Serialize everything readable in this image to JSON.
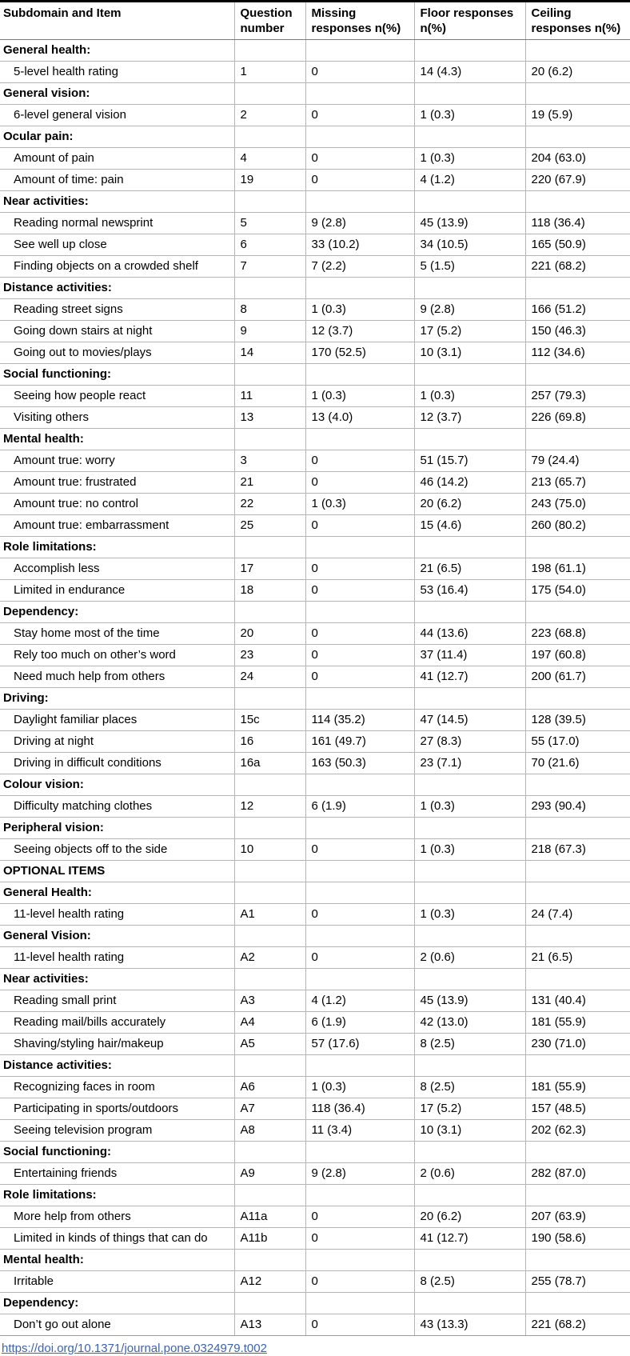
{
  "table": {
    "columns": [
      "Subdomain and Item",
      "Question number",
      "Missing responses n(%)",
      "Floor responses n(%)",
      "Ceiling responses n(%)"
    ],
    "rows": [
      {
        "type": "section",
        "label": "General health:",
        "q": "",
        "missing": "",
        "floor": "",
        "ceiling": ""
      },
      {
        "type": "item",
        "label": "5-level health rating",
        "q": "1",
        "missing": "0",
        "floor": "14 (4.3)",
        "ceiling": "20 (6.2)"
      },
      {
        "type": "section",
        "label": "General vision:",
        "q": "",
        "missing": "",
        "floor": "",
        "ceiling": ""
      },
      {
        "type": "item",
        "label": "6-level general vision",
        "q": "2",
        "missing": "0",
        "floor": "1 (0.3)",
        "ceiling": "19 (5.9)"
      },
      {
        "type": "section",
        "label": "Ocular pain:",
        "q": "",
        "missing": "",
        "floor": "",
        "ceiling": ""
      },
      {
        "type": "item",
        "label": "Amount of pain",
        "q": "4",
        "missing": "0",
        "floor": "1 (0.3)",
        "ceiling": "204 (63.0)"
      },
      {
        "type": "item",
        "label": "Amount of time: pain",
        "q": "19",
        "missing": "0",
        "floor": "4 (1.2)",
        "ceiling": "220 (67.9)"
      },
      {
        "type": "section",
        "label": "Near activities:",
        "q": "",
        "missing": "",
        "floor": "",
        "ceiling": ""
      },
      {
        "type": "item",
        "label": "Reading normal newsprint",
        "q": "5",
        "missing": "9 (2.8)",
        "floor": "45 (13.9)",
        "ceiling": "118 (36.4)"
      },
      {
        "type": "item",
        "label": "See well up close",
        "q": "6",
        "missing": "33 (10.2)",
        "floor": "34 (10.5)",
        "ceiling": "165 (50.9)"
      },
      {
        "type": "item",
        "label": "Finding objects on a crowded shelf",
        "q": "7",
        "missing": "7 (2.2)",
        "floor": "5 (1.5)",
        "ceiling": "221 (68.2)"
      },
      {
        "type": "section",
        "label": "Distance activities:",
        "q": "",
        "missing": "",
        "floor": "",
        "ceiling": ""
      },
      {
        "type": "item",
        "label": "Reading street signs",
        "q": "8",
        "missing": "1 (0.3)",
        "floor": "9 (2.8)",
        "ceiling": "166 (51.2)"
      },
      {
        "type": "item",
        "label": "Going down stairs at night",
        "q": "9",
        "missing": "12 (3.7)",
        "floor": "17 (5.2)",
        "ceiling": "150 (46.3)"
      },
      {
        "type": "item",
        "label": "Going out to movies/plays",
        "q": "14",
        "missing": "170 (52.5)",
        "floor": "10 (3.1)",
        "ceiling": "112 (34.6)"
      },
      {
        "type": "section",
        "label": "Social functioning:",
        "q": "",
        "missing": "",
        "floor": "",
        "ceiling": ""
      },
      {
        "type": "item",
        "label": "Seeing how people react",
        "q": "11",
        "missing": "1 (0.3)",
        "floor": "1 (0.3)",
        "ceiling": "257 (79.3)"
      },
      {
        "type": "item",
        "label": "Visiting others",
        "q": "13",
        "missing": "13 (4.0)",
        "floor": "12 (3.7)",
        "ceiling": "226 (69.8)"
      },
      {
        "type": "section",
        "label": "Mental health:",
        "q": "",
        "missing": "",
        "floor": "",
        "ceiling": ""
      },
      {
        "type": "item",
        "label": "Amount true: worry",
        "q": "3",
        "missing": "0",
        "floor": "51 (15.7)",
        "ceiling": "79 (24.4)"
      },
      {
        "type": "item",
        "label": "Amount true: frustrated",
        "q": "21",
        "missing": "0",
        "floor": "46 (14.2)",
        "ceiling": "213 (65.7)"
      },
      {
        "type": "item",
        "label": "Amount true: no control",
        "q": "22",
        "missing": "1 (0.3)",
        "floor": "20 (6.2)",
        "ceiling": "243 (75.0)"
      },
      {
        "type": "item",
        "label": "Amount true: embarrassment",
        "q": "25",
        "missing": "0",
        "floor": "15 (4.6)",
        "ceiling": "260 (80.2)"
      },
      {
        "type": "section",
        "label": "Role limitations:",
        "q": "",
        "missing": "",
        "floor": "",
        "ceiling": ""
      },
      {
        "type": "item",
        "label": "Accomplish less",
        "q": "17",
        "missing": "0",
        "floor": "21 (6.5)",
        "ceiling": "198 (61.1)"
      },
      {
        "type": "item",
        "label": "Limited in endurance",
        "q": "18",
        "missing": "0",
        "floor": "53 (16.4)",
        "ceiling": "175 (54.0)"
      },
      {
        "type": "section",
        "label": "Dependency:",
        "q": "",
        "missing": "",
        "floor": "",
        "ceiling": ""
      },
      {
        "type": "item",
        "label": "Stay home most of the time",
        "q": "20",
        "missing": "0",
        "floor": "44 (13.6)",
        "ceiling": "223 (68.8)"
      },
      {
        "type": "item",
        "label": "Rely too much on other’s word",
        "q": "23",
        "missing": "0",
        "floor": "37 (11.4)",
        "ceiling": "197 (60.8)"
      },
      {
        "type": "item",
        "label": "Need much help from others",
        "q": "24",
        "missing": "0",
        "floor": "41 (12.7)",
        "ceiling": "200 (61.7)"
      },
      {
        "type": "section",
        "label": "Driving:",
        "q": "",
        "missing": "",
        "floor": "",
        "ceiling": ""
      },
      {
        "type": "item",
        "label": "Daylight familiar places",
        "q": "15c",
        "missing": "114 (35.2)",
        "floor": "47 (14.5)",
        "ceiling": "128 (39.5)"
      },
      {
        "type": "item",
        "label": "Driving at night",
        "q": "16",
        "missing": "161 (49.7)",
        "floor": "27 (8.3)",
        "ceiling": "55 (17.0)"
      },
      {
        "type": "item",
        "label": "Driving in difficult conditions",
        "q": "16a",
        "missing": "163 (50.3)",
        "floor": "23 (7.1)",
        "ceiling": "70 (21.6)"
      },
      {
        "type": "section",
        "label": "Colour vision:",
        "q": "",
        "missing": "",
        "floor": "",
        "ceiling": ""
      },
      {
        "type": "item",
        "label": "Difficulty matching clothes",
        "q": "12",
        "missing": "6 (1.9)",
        "floor": "1 (0.3)",
        "ceiling": "293 (90.4)"
      },
      {
        "type": "section",
        "label": "Peripheral vision:",
        "q": "",
        "missing": "",
        "floor": "",
        "ceiling": ""
      },
      {
        "type": "item",
        "label": "Seeing objects off to the side",
        "q": "10",
        "missing": "0",
        "floor": "1 (0.3)",
        "ceiling": "218 (67.3)"
      },
      {
        "type": "section",
        "label": "OPTIONAL ITEMS",
        "q": "",
        "missing": "",
        "floor": "",
        "ceiling": ""
      },
      {
        "type": "section",
        "label": "General Health:",
        "q": "",
        "missing": "",
        "floor": "",
        "ceiling": ""
      },
      {
        "type": "item",
        "label": "11-level health rating",
        "q": "A1",
        "missing": "0",
        "floor": "1 (0.3)",
        "ceiling": "24 (7.4)"
      },
      {
        "type": "section",
        "label": "General Vision:",
        "q": "",
        "missing": "",
        "floor": "",
        "ceiling": ""
      },
      {
        "type": "item",
        "label": "11-level health rating",
        "q": "A2",
        "missing": "0",
        "floor": "2 (0.6)",
        "ceiling": "21 (6.5)"
      },
      {
        "type": "section",
        "label": "Near activities:",
        "q": "",
        "missing": "",
        "floor": "",
        "ceiling": ""
      },
      {
        "type": "item",
        "label": "Reading small print",
        "q": "A3",
        "missing": "4 (1.2)",
        "floor": "45 (13.9)",
        "ceiling": "131 (40.4)"
      },
      {
        "type": "item",
        "label": "Reading mail/bills accurately",
        "q": "A4",
        "missing": "6 (1.9)",
        "floor": "42 (13.0)",
        "ceiling": "181 (55.9)"
      },
      {
        "type": "item",
        "label": "Shaving/styling hair/makeup",
        "q": "A5",
        "missing": "57 (17.6)",
        "floor": "8 (2.5)",
        "ceiling": "230 (71.0)"
      },
      {
        "type": "section",
        "label": "Distance activities:",
        "q": "",
        "missing": "",
        "floor": "",
        "ceiling": ""
      },
      {
        "type": "item",
        "label": "Recognizing faces in room",
        "q": "A6",
        "missing": "1 (0.3)",
        "floor": "8 (2.5)",
        "ceiling": "181 (55.9)"
      },
      {
        "type": "item",
        "label": "Participating in sports/outdoors",
        "q": "A7",
        "missing": "118 (36.4)",
        "floor": "17 (5.2)",
        "ceiling": "157 (48.5)"
      },
      {
        "type": "item",
        "label": "Seeing television program",
        "q": "A8",
        "missing": "11 (3.4)",
        "floor": "10 (3.1)",
        "ceiling": "202 (62.3)"
      },
      {
        "type": "section",
        "label": "Social functioning:",
        "q": "",
        "missing": "",
        "floor": "",
        "ceiling": ""
      },
      {
        "type": "item",
        "label": "Entertaining friends",
        "q": "A9",
        "missing": "9 (2.8)",
        "floor": "2 (0.6)",
        "ceiling": "282 (87.0)"
      },
      {
        "type": "section",
        "label": "Role limitations:",
        "q": "",
        "missing": "",
        "floor": "",
        "ceiling": ""
      },
      {
        "type": "item",
        "label": "More help from others",
        "q": "A11a",
        "missing": "0",
        "floor": "20 (6.2)",
        "ceiling": "207 (63.9)"
      },
      {
        "type": "item",
        "label": "Limited in kinds of things that can do",
        "q": "A11b",
        "missing": "0",
        "floor": "41 (12.7)",
        "ceiling": "190 (58.6)"
      },
      {
        "type": "section",
        "label": "Mental health:",
        "q": "",
        "missing": "",
        "floor": "",
        "ceiling": ""
      },
      {
        "type": "item",
        "label": "Irritable",
        "q": "A12",
        "missing": "0",
        "floor": "8 (2.5)",
        "ceiling": "255 (78.7)"
      },
      {
        "type": "section",
        "label": "Dependency:",
        "q": "",
        "missing": "",
        "floor": "",
        "ceiling": ""
      },
      {
        "type": "item",
        "label": "Don’t go out alone",
        "q": "A13",
        "missing": "0",
        "floor": "43 (13.3)",
        "ceiling": "221 (68.2)"
      }
    ]
  },
  "footer": {
    "doi_link": "https://doi.org/10.1371/journal.pone.0324979.t002",
    "link_color": "#3c64ad"
  }
}
